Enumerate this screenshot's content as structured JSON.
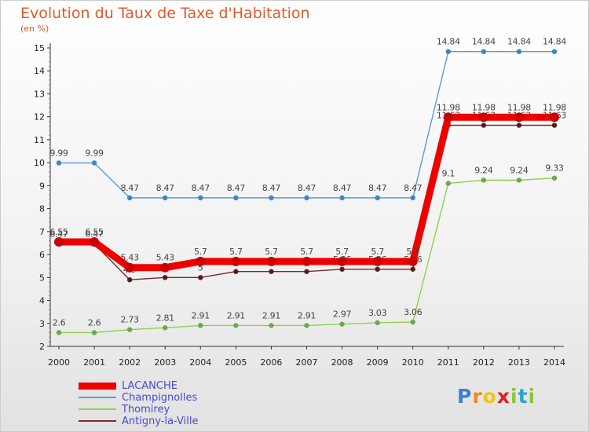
{
  "chart_data": {
    "type": "line",
    "title": "Evolution du Taux de Taxe d'Habitation",
    "subtitle": "(en %)",
    "x": [
      "2000",
      "2001",
      "2002",
      "2003",
      "2004",
      "2005",
      "2006",
      "2007",
      "2008",
      "2009",
      "2010",
      "2011",
      "2012",
      "2013",
      "2014"
    ],
    "ylim": [
      2,
      15
    ],
    "yticks": [
      "2",
      "3",
      "4",
      "5",
      "6",
      "7",
      "8",
      "9",
      "10",
      "11",
      "12",
      "13",
      "14",
      "15"
    ],
    "grid": false,
    "legend": "bottom-left",
    "series": [
      {
        "name": "LACANCHE",
        "color": "#ee0000",
        "values": [
          6.55,
          6.55,
          5.43,
          5.43,
          5.7,
          5.7,
          5.7,
          5.7,
          5.7,
          5.7,
          5.7,
          11.98,
          11.98,
          11.98,
          11.98
        ],
        "labels": [
          "6.55",
          "6.55",
          "5.43",
          "5.43",
          "5.7",
          "5.7",
          "5.7",
          "5.7",
          "5.7",
          "5.7",
          "5.7",
          "11.98",
          "11.98",
          "11.98",
          "11.98"
        ]
      },
      {
        "name": "Champignolles",
        "color": "#5b9bd5",
        "values": [
          9.99,
          9.99,
          8.47,
          8.47,
          8.47,
          8.47,
          8.47,
          8.47,
          8.47,
          8.47,
          8.47,
          14.84,
          14.84,
          14.84,
          14.84
        ],
        "labels": [
          "9.99",
          "9.99",
          "8.47",
          "8.47",
          "8.47",
          "8.47",
          "8.47",
          "8.47",
          "8.47",
          "8.47",
          "8.47",
          "14.84",
          "14.84",
          "14.84",
          "14.84"
        ]
      },
      {
        "name": "Thomirey",
        "color": "#90d050",
        "values": [
          2.6,
          2.6,
          2.73,
          2.81,
          2.91,
          2.91,
          2.91,
          2.91,
          2.97,
          3.03,
          3.06,
          9.1,
          9.24,
          9.24,
          9.33
        ],
        "labels": [
          "2.6",
          "2.6",
          "2.73",
          "2.81",
          "2.91",
          "2.91",
          "2.91",
          "2.91",
          "2.97",
          "3.03",
          "3.06",
          "9.1",
          "9.24",
          "9.24",
          "9.33"
        ]
      },
      {
        "name": "Antigny-la-Ville",
        "color": "#7a2a2a",
        "values": [
          6.47,
          6.47,
          4.9,
          5,
          5,
          5.26,
          5.26,
          5.26,
          5.36,
          5.36,
          5.36,
          11.63,
          11.63,
          11.63,
          11.63
        ],
        "labels": [
          "6.47",
          "6.47",
          "4.9",
          "5",
          "5",
          "5.26",
          "5.26",
          "5.26",
          "5.36",
          "5.36",
          "5.36",
          "11.63",
          "11.63",
          "11.63",
          "11.63"
        ]
      }
    ]
  },
  "logo": {
    "letters": [
      "P",
      "r",
      "o",
      "x",
      "i",
      "t",
      "i"
    ],
    "colors": [
      "#3a7fd0",
      "#f08a1c",
      "#f0c419",
      "#d8262c",
      "#8cc63f",
      "#2aa6c8",
      "#8cc63f"
    ]
  }
}
